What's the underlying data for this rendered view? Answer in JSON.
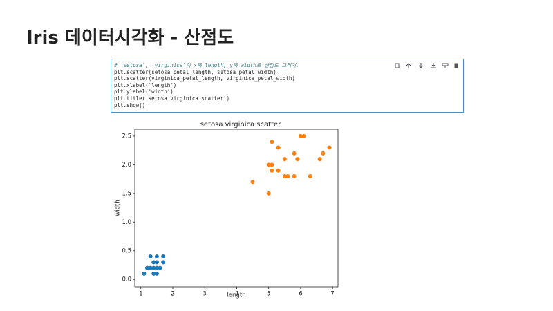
{
  "title": "Iris 데이터시각화 - 산점도",
  "code": [
    "# 'setosa', 'virginica'의 x축 length, y축 width로 산점도 그리기.",
    "plt.scatter(setosa_petal_length, setosa_petal_width)",
    "plt.scatter(virginica_petal_length, virginica_petal_width)",
    "plt.xlabel('length')",
    "plt.ylabel('width')",
    "plt.title('setosa virginica scatter')",
    "plt.show()"
  ],
  "chart_data": {
    "type": "scatter",
    "title": "setosa virginica scatter",
    "xlabel": "length",
    "ylabel": "width",
    "xlim": [
      0.81,
      7.17
    ],
    "ylim": [
      -0.13,
      2.62
    ],
    "xticks": [
      1,
      2,
      3,
      4,
      5,
      6,
      7
    ],
    "yticks": [
      {
        "value": 0,
        "label": "0.0"
      },
      {
        "value": 0.5,
        "label": "0.5"
      },
      {
        "value": 1,
        "label": "1.0"
      },
      {
        "value": 1.5,
        "label": "1.5"
      },
      {
        "value": 2,
        "label": "2.0"
      },
      {
        "value": 2.5,
        "label": "2.5"
      }
    ],
    "series": [
      {
        "color": "#1f77b4",
        "x": [
          1.1,
          1.2,
          1.3,
          1.3,
          1.4,
          1.4,
          1.4,
          1.5,
          1.5,
          1.5,
          1.5,
          1.6,
          1.7,
          1.7
        ],
        "values": [
          0.1,
          0.2,
          0.4,
          0.2,
          0.1,
          0.2,
          0.3,
          0.4,
          0.3,
          0.2,
          0.1,
          0.2,
          0.4,
          0.3
        ]
      },
      {
        "color": "#ff7f0e",
        "x": [
          4.5,
          5.0,
          5.0,
          5.1,
          5.1,
          5.1,
          5.3,
          5.3,
          5.5,
          5.5,
          5.6,
          5.8,
          5.8,
          5.9,
          6.0,
          6.1,
          6.3,
          6.6,
          6.7,
          6.9
        ],
        "values": [
          1.7,
          1.5,
          2.0,
          2.0,
          2.4,
          1.9,
          2.3,
          1.9,
          2.1,
          1.8,
          1.8,
          2.2,
          1.8,
          2.1,
          2.5,
          2.5,
          1.8,
          2.1,
          2.2,
          2.3
        ]
      }
    ]
  }
}
